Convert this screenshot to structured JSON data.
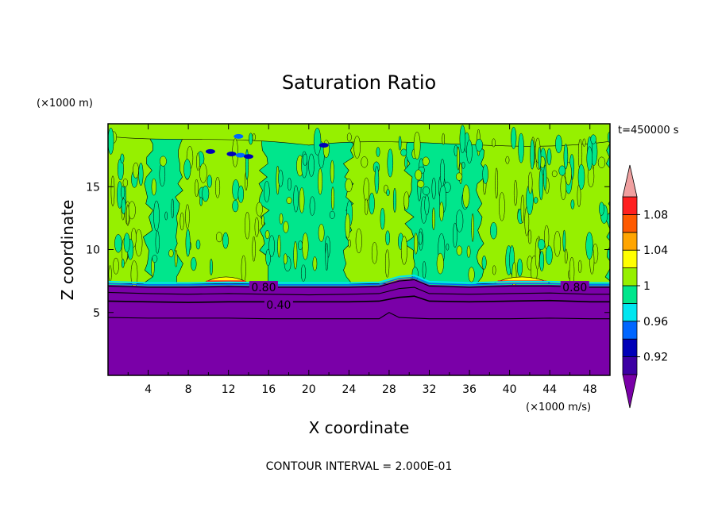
{
  "chart_data": {
    "type": "contour",
    "title": "Saturation Ratio",
    "xlabel": "X coordinate",
    "ylabel": "Z coordinate",
    "x_units": "(×1000 m/s)",
    "y_units": "(×1000 m)",
    "time_label": "t=450000 s",
    "footer": "CONTOUR INTERVAL = 2.000E-01",
    "xlim": [
      0,
      50
    ],
    "ylim": [
      0,
      20
    ],
    "x_ticks": [
      4,
      8,
      12,
      16,
      20,
      24,
      28,
      32,
      36,
      40,
      44,
      48
    ],
    "y_ticks": [
      5,
      10,
      15
    ],
    "contour_labels": [
      {
        "text": "0.80",
        "x": 15.5,
        "y": 7.0
      },
      {
        "text": "0.80",
        "x": 46.5,
        "y": 7.0
      },
      {
        "text": "0.40",
        "x": 17.0,
        "y": 5.6
      }
    ],
    "contour_lines": [
      {
        "level": 0.8,
        "x": [
          0,
          4,
          8,
          12,
          16,
          20,
          24,
          27,
          29,
          30.5,
          32,
          36,
          40,
          44,
          48,
          50
        ],
        "y": [
          7.1,
          7.0,
          7.0,
          7.05,
          7.0,
          7.0,
          7.0,
          7.05,
          7.5,
          7.6,
          7.1,
          7.0,
          7.1,
          7.1,
          7.0,
          7.0
        ]
      },
      {
        "level": 0.6,
        "x": [
          0,
          4,
          8,
          12,
          16,
          20,
          24,
          27,
          29,
          30.5,
          32,
          36,
          40,
          44,
          48,
          50
        ],
        "y": [
          6.6,
          6.5,
          6.45,
          6.5,
          6.45,
          6.4,
          6.45,
          6.5,
          6.9,
          7.0,
          6.5,
          6.45,
          6.5,
          6.55,
          6.45,
          6.45
        ]
      },
      {
        "level": 0.4,
        "x": [
          0,
          4,
          8,
          12,
          16,
          20,
          24,
          27,
          29,
          30.5,
          32,
          36,
          40,
          44,
          48,
          50
        ],
        "y": [
          5.9,
          5.85,
          5.8,
          5.85,
          5.85,
          5.85,
          5.85,
          5.9,
          6.2,
          6.3,
          5.9,
          5.85,
          5.9,
          5.95,
          5.85,
          5.85
        ]
      },
      {
        "level": 0.2,
        "x": [
          0,
          4,
          8,
          12,
          16,
          20,
          24,
          27,
          28,
          29,
          32,
          36,
          40,
          44,
          48,
          50
        ],
        "y": [
          4.6,
          4.55,
          4.55,
          4.55,
          4.5,
          4.5,
          4.5,
          4.5,
          5.0,
          4.6,
          4.5,
          4.5,
          4.5,
          4.55,
          4.5,
          4.5
        ]
      }
    ],
    "colorbar": {
      "bands": [
        {
          "min": null,
          "max": 0.9,
          "color": "#7a00a8"
        },
        {
          "min": 0.9,
          "max": 0.92,
          "color": "#3c00a4"
        },
        {
          "min": 0.92,
          "max": 0.94,
          "color": "#0000b8"
        },
        {
          "min": 0.94,
          "max": 0.96,
          "color": "#0066ff"
        },
        {
          "min": 0.96,
          "max": 0.98,
          "color": "#00e6f0"
        },
        {
          "min": 0.98,
          "max": 1.0,
          "color": "#00e68c"
        },
        {
          "min": 1.0,
          "max": 1.02,
          "color": "#96f000"
        },
        {
          "min": 1.02,
          "max": 1.04,
          "color": "#ffff00"
        },
        {
          "min": 1.04,
          "max": 1.06,
          "color": "#ffa500"
        },
        {
          "min": 1.06,
          "max": 1.08,
          "color": "#ff5a00"
        },
        {
          "min": 1.08,
          "max": 1.1,
          "color": "#ff2020"
        },
        {
          "min": 1.1,
          "max": null,
          "color": "#f0a0a0"
        }
      ],
      "labels": [
        "0.92",
        "0.96",
        "1",
        "1.04",
        "1.08"
      ]
    },
    "regions": [
      {
        "value": "< 0.90",
        "color": "#7a00a8",
        "x": [
          0,
          50
        ],
        "y": [
          0,
          7.2
        ]
      },
      {
        "value": "0.98-1.00",
        "color": "#00e68c",
        "x": [
          0,
          50
        ],
        "y": [
          7.2,
          20
        ]
      },
      {
        "value": "1.00-1.02",
        "color": "#96f000",
        "description_x": [
          [
            0,
            4
          ],
          [
            7,
            15.5
          ],
          [
            24,
            30
          ],
          [
            37,
            50
          ]
        ],
        "y": [
          7.4,
          20
        ]
      },
      {
        "value": "1.02-1.04",
        "color": "#ffff00",
        "x": [
          [
            9.5,
            14
          ],
          [
            38.5,
            44
          ]
        ],
        "y": [
          7.4,
          7.9
        ]
      }
    ]
  }
}
